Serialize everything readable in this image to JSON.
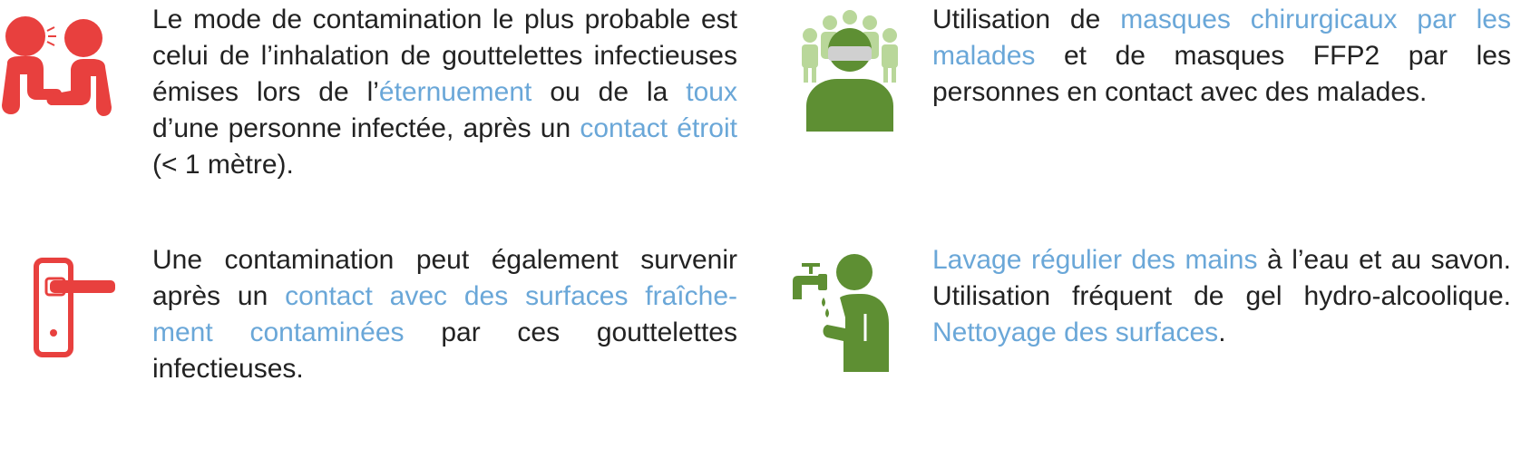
{
  "colors": {
    "text": "#222222",
    "highlight": "#6aa7d8",
    "red_icon": "#e8403e",
    "green_icon": "#5e8f33",
    "light_green_icon": "#b9d79a",
    "mask_gray": "#d0d0d0"
  },
  "icons": {
    "sneeze": "people-sneezing-icon",
    "mask": "masked-person-icon",
    "door": "door-handle-icon",
    "handwash": "hand-washing-icon"
  },
  "block1": {
    "p1": "Le mode de contamination le plus probable est celui de l’inhalation de gouttelettes infectieuses émises lors de l’",
    "h1": "éternuement",
    "p2": " ou de la ",
    "h2": "toux",
    "p3": " d’une personne infectée, après un ",
    "h3": "contact étroit",
    "p4": " (< 1 mètre)."
  },
  "block2": {
    "p1": "Utilisation de ",
    "h1": "masques chirurgicaux par les malades",
    "p2": " et de masques FFP2 par les personnes en contact avec des malades."
  },
  "block3": {
    "p1": "Une contamination peut également survenir après un ",
    "h1": "contact avec des surfaces fraîche-ment contaminées",
    "p2": " par ces gouttelettes infectieuses."
  },
  "block4": {
    "h1": "Lavage régulier des mains",
    "p1": " à l’eau et au savon. Utilisation fréquent de gel hydro-alcoolique. ",
    "h2": "Nettoyage des surfaces",
    "p2": "."
  }
}
